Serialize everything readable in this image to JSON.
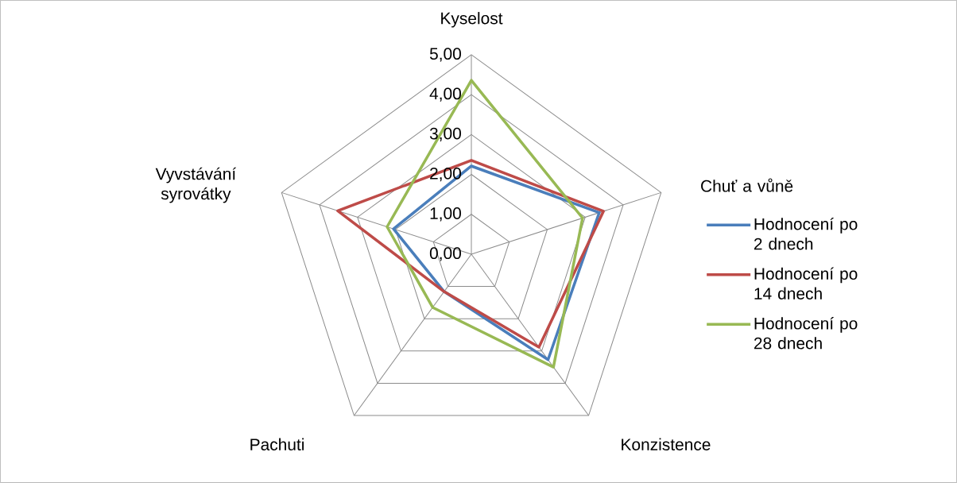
{
  "chart_data": {
    "type": "radar",
    "categories": [
      "Kyselost",
      "Chuť a vůně",
      "Konzistence",
      "Pachuti",
      "Vyvstávání syrovátky"
    ],
    "series": [
      {
        "name": "Hodnocení po 2 dnech",
        "color": "#4a7ebb",
        "values": [
          2.21,
          3.37,
          3.27,
          1.16,
          2.05
        ]
      },
      {
        "name": "Hodnocení po 14 dnech",
        "color": "#be4b48",
        "values": [
          2.35,
          3.48,
          2.88,
          1.16,
          3.52
        ]
      },
      {
        "name": "Hodnocení po 28 dnech",
        "color": "#98b954",
        "values": [
          4.36,
          2.93,
          3.5,
          1.65,
          2.22
        ]
      }
    ],
    "ylim": [
      0,
      5
    ],
    "yticks": [
      {
        "value": 0,
        "label": "0,00"
      },
      {
        "value": 1,
        "label": "1,00"
      },
      {
        "value": 2,
        "label": "2,00"
      },
      {
        "value": 3,
        "label": "3,00"
      },
      {
        "value": 4,
        "label": "4,00"
      },
      {
        "value": 5,
        "label": "5,00"
      }
    ],
    "grid": true,
    "legend": "right"
  }
}
